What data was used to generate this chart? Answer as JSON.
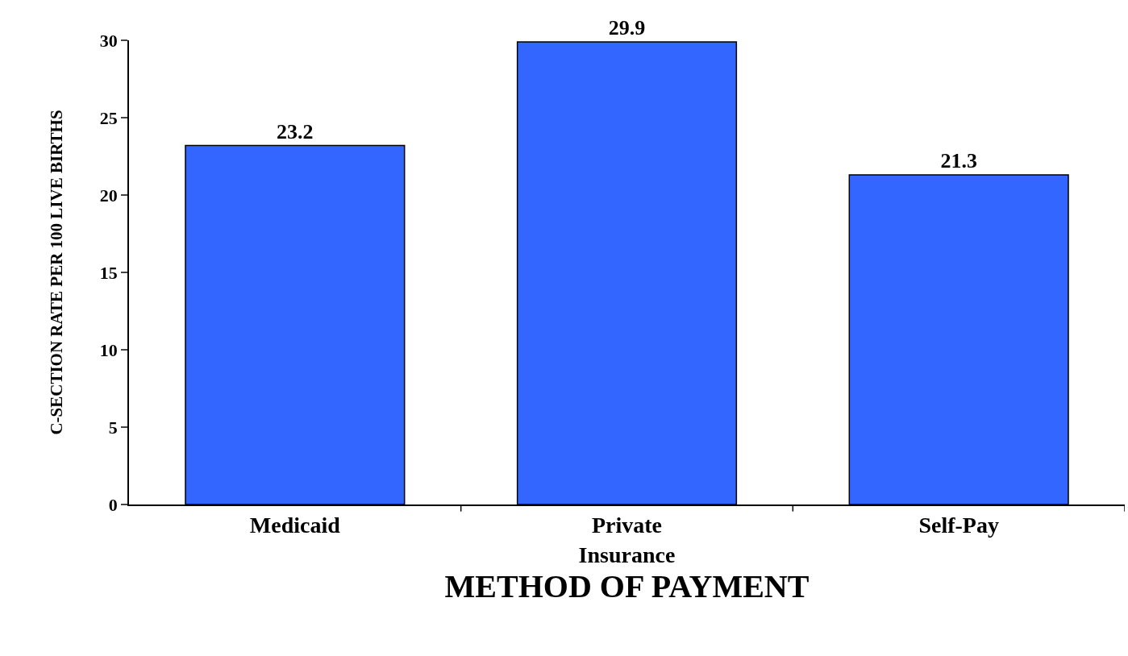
{
  "chart_data": {
    "type": "bar",
    "categories": [
      "Medicaid",
      "Private\nInsurance",
      "Self-Pay"
    ],
    "values": [
      23.2,
      29.9,
      21.3
    ],
    "color": "#3366ff",
    "xlabel": "METHOD OF PAYMENT",
    "ylabel": "C-SECTION RATE PER 100 LIVE BIRTHS",
    "ylim": [
      0,
      30
    ],
    "yticks": [
      0,
      5,
      10,
      15,
      20,
      25,
      30
    ],
    "data_labels": true,
    "legend": false
  }
}
